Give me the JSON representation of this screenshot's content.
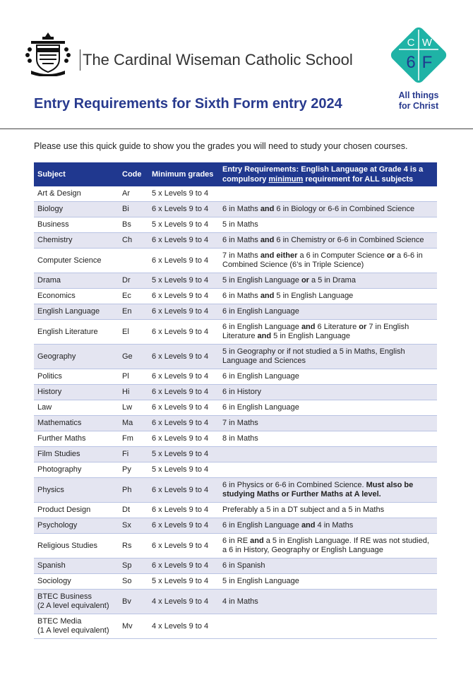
{
  "header": {
    "school_name": "The Cardinal Wiseman Catholic School",
    "heading": "Entry Requirements for Sixth Form entry 2024",
    "logo": {
      "letters": [
        "C",
        "W",
        "6",
        "F"
      ],
      "tagline": "All things\nfor Christ"
    }
  },
  "intro": "Please use this quick guide to show you the grades you will need to study your chosen courses.",
  "table": {
    "columns": [
      "Subject",
      "Code",
      "Minimum grades",
      [
        {
          "text": "Entry Requirements: English Language at Grade 4 is a compulsory "
        },
        {
          "text": "minimum",
          "underline": true
        },
        {
          "text": " requirement for ALL subjects"
        }
      ]
    ],
    "rows": [
      [
        "Art & Design",
        "Ar",
        "5 x Levels 9 to 4",
        []
      ],
      [
        "Biology",
        "Bi",
        "6 x Levels 9 to 4",
        [
          {
            "text": "6 in Maths "
          },
          {
            "text": "and",
            "bold": true
          },
          {
            "text": " 6 in Biology or 6-6 in Combined Science"
          }
        ]
      ],
      [
        "Business",
        "Bs",
        "5 x Levels 9 to 4",
        [
          {
            "text": "5 in Maths"
          }
        ]
      ],
      [
        "Chemistry",
        "Ch",
        "6 x Levels 9 to 4",
        [
          {
            "text": "6 in Maths "
          },
          {
            "text": "and",
            "bold": true
          },
          {
            "text": " 6 in Chemistry  or 6-6 in Combined Science"
          }
        ]
      ],
      [
        "Computer Science",
        null,
        "6 x Levels 9 to 4",
        [
          {
            "text": "7 in Maths "
          },
          {
            "text": "and either",
            "bold": true
          },
          {
            "text": " a 6 in Computer Science "
          },
          {
            "text": "or",
            "bold": true
          },
          {
            "text": " a 6-6 in Combined Science (6’s in Triple Science)"
          }
        ]
      ],
      [
        "Drama",
        "Dr",
        "5 x Levels 9 to 4",
        [
          {
            "text": "5 in English Language "
          },
          {
            "text": "or",
            "bold": true
          },
          {
            "text": " a 5 in Drama"
          }
        ]
      ],
      [
        "Economics",
        "Ec",
        "6 x Levels 9 to 4",
        [
          {
            "text": "6 in Maths "
          },
          {
            "text": "and",
            "bold": true
          },
          {
            "text": " 5 in English Language"
          }
        ]
      ],
      [
        "English Language",
        "En",
        "6 x Levels 9 to 4",
        [
          {
            "text": "6 in English Language"
          }
        ]
      ],
      [
        "English Literature",
        "El",
        "6 x Levels 9 to 4",
        [
          {
            "text": "6 in English Language "
          },
          {
            "text": "and",
            "bold": true
          },
          {
            "text": " 6 Literature "
          },
          {
            "text": "or",
            "bold": true
          },
          {
            "text": " 7 in English Literature "
          },
          {
            "text": "and",
            "bold": true
          },
          {
            "text": " 5 in English Language"
          }
        ]
      ],
      [
        "Geography",
        "Ge",
        "6 x Levels 9 to 4",
        [
          {
            "text": "5 in Geography or if not studied a 5 in Maths, English Language and Sciences"
          }
        ]
      ],
      [
        "Politics",
        "Pl",
        "6 x Levels 9 to 4",
        [
          {
            "text": "6 in English Language"
          }
        ]
      ],
      [
        "History",
        "Hi",
        "6 x Levels 9 to 4",
        [
          {
            "text": "6 in History"
          }
        ]
      ],
      [
        "Law",
        "Lw",
        "6 x Levels 9 to 4",
        [
          {
            "text": "6 in English Language"
          }
        ]
      ],
      [
        "Mathematics",
        "Ma",
        "6 x Levels 9 to 4",
        [
          {
            "text": "7 in Maths"
          }
        ]
      ],
      [
        "Further Maths",
        "Fm",
        "6 x Levels 9 to 4",
        [
          {
            "text": "8 in Maths"
          }
        ]
      ],
      [
        "Film Studies",
        "Fi",
        "5 x Levels 9 to 4",
        []
      ],
      [
        "Photography",
        "Py",
        "5 x Levels 9 to 4",
        []
      ],
      [
        "Physics",
        "Ph",
        "6 x Levels 9 to 4",
        [
          {
            "text": "6 in Physics or 6-6 in Combined Science. "
          },
          {
            "text": "Must also be studying Maths or Further Maths at A level.",
            "bold": true
          }
        ]
      ],
      [
        "Product Design",
        "Dt",
        "6 x Levels 9 to 4",
        [
          {
            "text": "Preferably a 5 in a DT subject and a 5 in Maths"
          }
        ]
      ],
      [
        "Psychology",
        "Sx",
        "6 x Levels 9 to 4",
        [
          {
            "text": "6 in English Language "
          },
          {
            "text": "and",
            "bold": true
          },
          {
            "text": " 4 in Maths"
          }
        ]
      ],
      [
        "Religious Studies",
        "Rs",
        "6 x Levels 9 to 4",
        [
          {
            "text": "6 in RE "
          },
          {
            "text": "and",
            "bold": true
          },
          {
            "text": " a 5 in English Language. If RE was not studied, a 6 in History, Geography or English Language"
          }
        ]
      ],
      [
        "Spanish",
        "Sp",
        "6 x Levels 9 to 4",
        [
          {
            "text": "6 in Spanish"
          }
        ]
      ],
      [
        "Sociology",
        "So",
        "5 x Levels 9 to 4",
        [
          {
            "text": "5 in English Language"
          }
        ]
      ],
      [
        "BTEC Business\n(2 A level equivalent)",
        "Bv",
        "4 x Levels 9 to 4",
        [
          {
            "text": "4 in Maths"
          }
        ]
      ],
      [
        "BTEC Media\n(1 A level equivalent)",
        "Mv",
        "4 x Levels 9 to 4",
        []
      ]
    ]
  }
}
